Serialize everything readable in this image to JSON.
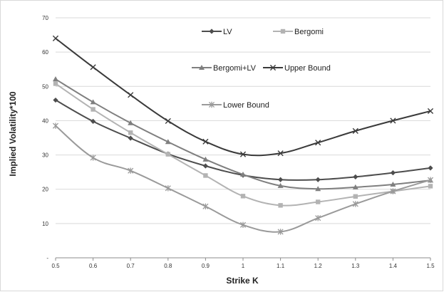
{
  "chart_data": {
    "type": "line",
    "title": "",
    "xlabel": "Strike K",
    "ylabel": "Implied Volatility*100",
    "x": [
      0.5,
      0.6,
      0.7,
      0.8,
      0.9,
      1,
      1.1,
      1.2,
      1.3,
      1.4,
      1.5
    ],
    "x_tick_labels": [
      "0.5",
      "0.6",
      "0.7",
      "0.8",
      "0.9",
      "1",
      "1.1",
      "1.2",
      "1.3",
      "1.4",
      "1.5"
    ],
    "y_ticks": [
      0,
      10,
      20,
      30,
      40,
      50,
      60,
      70
    ],
    "y_tick_labels": [
      "-",
      "10",
      "20",
      "30",
      "40",
      "50",
      "60",
      "70"
    ],
    "xlim": [
      0.5,
      1.5
    ],
    "ylim": [
      0,
      70
    ],
    "grid": "horizontal",
    "legend_placement": "inside-top",
    "series": [
      {
        "name": "LV",
        "marker": "diamond",
        "color": "#4d4d4d",
        "values": [
          46,
          39.8,
          34.9,
          30.3,
          26.8,
          24.1,
          22.8,
          22.8,
          23.6,
          24.8,
          26.2
        ]
      },
      {
        "name": "Bergomi",
        "marker": "square",
        "color": "#b3b3b3",
        "values": [
          50.8,
          43.3,
          36.5,
          30.2,
          24,
          18,
          15.3,
          16.3,
          17.9,
          19.4,
          20.9
        ]
      },
      {
        "name": "Bergomi+LV",
        "marker": "triangle",
        "color": "#7f7f7f",
        "values": [
          52.1,
          45.4,
          39.3,
          33.8,
          28.7,
          24.3,
          21,
          20.1,
          20.6,
          21.4,
          22.6
        ]
      },
      {
        "name": "Upper Bound",
        "marker": "x",
        "color": "#3a3a3a",
        "values": [
          64,
          55.6,
          47.5,
          39.9,
          33.9,
          30.2,
          30.5,
          33.6,
          37,
          40,
          42.8
        ]
      },
      {
        "name": "Lower Bound",
        "marker": "asterisk",
        "color": "#9a9a9a",
        "values": [
          38.5,
          29.2,
          25.4,
          20.3,
          15,
          9.6,
          7.6,
          11.6,
          15.7,
          19.4,
          22.7
        ]
      }
    ]
  }
}
